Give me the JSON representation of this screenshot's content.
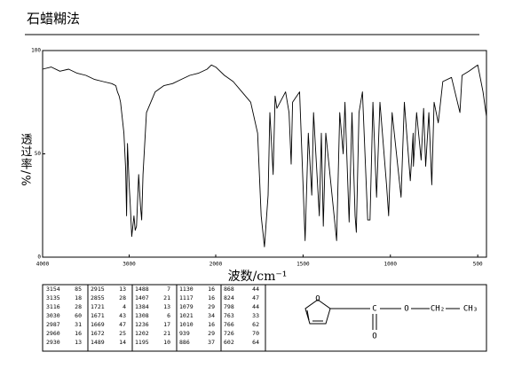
{
  "chart_data": {
    "type": "line",
    "title": "石蜡糊法",
    "xlabel": "波数/cm⁻¹",
    "ylabel": "透过率/%",
    "color": "#000000",
    "x": [
      4000,
      3900,
      3800,
      3700,
      3600,
      3500,
      3400,
      3300,
      3200,
      3154,
      3135,
      3116,
      3100,
      3060,
      3040,
      3030,
      3020,
      3000,
      2987,
      2970,
      2960,
      2945,
      2930,
      2915,
      2890,
      2870,
      2855,
      2840,
      2800,
      2700,
      2600,
      2500,
      2400,
      2300,
      2200,
      2100,
      2050,
      2000,
      1950,
      1900,
      1850,
      1800,
      1760,
      1740,
      1721,
      1700,
      1690,
      1671,
      1660,
      1650,
      1600,
      1580,
      1568,
      1560,
      1520,
      1488,
      1470,
      1450,
      1440,
      1407,
      1395,
      1384,
      1370,
      1308,
      1290,
      1270,
      1260,
      1236,
      1220,
      1202,
      1195,
      1180,
      1160,
      1130,
      1117,
      1100,
      1079,
      1060,
      1021,
      1010,
      990,
      939,
      920,
      886,
      870,
      868,
      850,
      824,
      810,
      798,
      780,
      763,
      750,
      726,
      700,
      650,
      602,
      590,
      550,
      500,
      470,
      450
    ],
    "values": [
      91,
      92,
      90,
      91,
      89,
      88,
      86,
      85,
      84,
      83,
      80,
      78,
      75,
      60,
      42,
      20,
      55,
      35,
      25,
      10,
      14,
      20,
      13,
      15,
      40,
      25,
      18,
      40,
      70,
      80,
      83,
      84,
      86,
      88,
      89,
      91,
      93,
      92,
      88,
      85,
      80,
      75,
      60,
      20,
      5,
      30,
      70,
      40,
      78,
      72,
      80,
      70,
      45,
      75,
      80,
      8,
      60,
      30,
      70,
      20,
      60,
      15,
      60,
      8,
      70,
      50,
      75,
      17,
      70,
      20,
      12,
      70,
      80,
      18,
      18,
      75,
      29,
      75,
      34,
      20,
      70,
      29,
      75,
      37,
      60,
      44,
      70,
      47,
      72,
      44,
      70,
      35,
      75,
      65,
      85,
      87,
      70,
      88,
      90,
      93,
      80,
      68
    ],
    "xlim": [
      4000,
      450
    ],
    "xbreak": 2000,
    "xticks": [
      4000,
      3000,
      2000,
      1500,
      1000,
      500
    ],
    "ylim": [
      0,
      100
    ],
    "yticks": [
      0,
      50,
      100
    ]
  },
  "table": {
    "rows": [
      [
        3154,
        85,
        2915,
        13,
        1488,
        7,
        1130,
        16,
        868,
        44
      ],
      [
        3135,
        18,
        2855,
        28,
        1407,
        21,
        1117,
        16,
        824,
        47
      ],
      [
        3116,
        28,
        1721,
        4,
        1384,
        13,
        1079,
        29,
        798,
        44
      ],
      [
        3030,
        60,
        1671,
        43,
        1308,
        6,
        1021,
        34,
        763,
        33
      ],
      [
        2987,
        31,
        1669,
        47,
        1236,
        17,
        1010,
        16,
        766,
        62
      ],
      [
        2960,
        16,
        1672,
        25,
        1202,
        21,
        939,
        29,
        726,
        70
      ],
      [
        2930,
        13,
        1489,
        14,
        1195,
        10,
        886,
        37,
        602,
        64
      ]
    ]
  },
  "structure": {
    "labels": [
      "O",
      "C",
      "O",
      "O",
      "CH₂",
      "CH₃"
    ]
  }
}
